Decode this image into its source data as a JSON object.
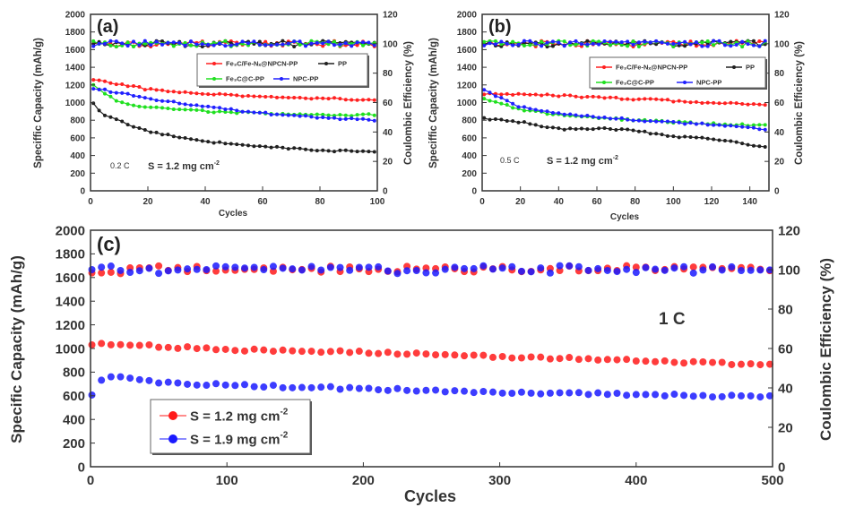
{
  "chart_data": [
    {
      "type": "line",
      "panel_label": "(a)",
      "xlabel": "Cycles",
      "ylabel": "Speciffic Capacity (mAh/g)",
      "ylabel_right": "Coulombic Efficiency (%)",
      "xlim": [
        0,
        100
      ],
      "xticks": [
        0,
        20,
        40,
        60,
        80,
        100
      ],
      "ylim": [
        0,
        2000
      ],
      "yticks": [
        0,
        200,
        400,
        600,
        800,
        1000,
        1200,
        1400,
        1600,
        1800,
        2000
      ],
      "ylim_right": [
        0,
        120
      ],
      "yticks_right": [
        0,
        20,
        40,
        60,
        80,
        100,
        120
      ],
      "annotations": [
        "0.2 C",
        "S = 1.2 mg cm",
        "-2"
      ],
      "legend": {
        "placement": "top-right"
      },
      "series": [
        {
          "name": "Fe₃C/Fe-Nₓ@NPCN-PP",
          "color": "#ff2020",
          "x": [
            0,
            20,
            40,
            60,
            80,
            100
          ],
          "capacity": [
            1270,
            1150,
            1100,
            1060,
            1050,
            1030
          ],
          "ce": 100
        },
        {
          "name": "PP",
          "color": "#202020",
          "x": [
            0,
            5,
            20,
            40,
            60,
            80,
            100
          ],
          "capacity": [
            1020,
            850,
            670,
            560,
            500,
            460,
            440
          ],
          "ce": 100
        },
        {
          "name": "Fe₃C@C-PP",
          "color": "#20e020",
          "x": [
            0,
            10,
            20,
            40,
            60,
            80,
            100
          ],
          "capacity": [
            1220,
            1000,
            950,
            900,
            880,
            860,
            860
          ],
          "ce": 100
        },
        {
          "name": "NPC-PP",
          "color": "#2020ff",
          "x": [
            0,
            20,
            40,
            60,
            80,
            100
          ],
          "capacity": [
            1170,
            1050,
            950,
            880,
            830,
            800
          ],
          "ce": 100
        }
      ]
    },
    {
      "type": "line",
      "panel_label": "(b)",
      "xlabel": "Cycles",
      "ylabel": "Speciffic Capacity (mAh/g)",
      "ylabel_right": "Coulombic Efficiency (%)",
      "xlim": [
        0,
        150
      ],
      "xticks": [
        0,
        20,
        40,
        60,
        80,
        100,
        120,
        140
      ],
      "ylim": [
        0,
        2000
      ],
      "yticks": [
        0,
        200,
        400,
        600,
        800,
        1000,
        1200,
        1400,
        1600,
        1800,
        2000
      ],
      "ylim_right": [
        0,
        120
      ],
      "yticks_right": [
        0,
        20,
        40,
        60,
        80,
        100,
        120
      ],
      "annotations": [
        "0.5 C",
        "S = 1.2 mg cm",
        "-2"
      ],
      "legend": {
        "placement": "top-right"
      },
      "series": [
        {
          "name": "Fe₃C/Fe-Nₓ@NPCN-PP",
          "color": "#ff2020",
          "x": [
            0,
            40,
            80,
            120,
            150
          ],
          "capacity": [
            1100,
            1080,
            1040,
            1000,
            970
          ],
          "ce": 100
        },
        {
          "name": "PP",
          "color": "#202020",
          "x": [
            0,
            20,
            40,
            60,
            80,
            100,
            120,
            150
          ],
          "capacity": [
            820,
            780,
            700,
            710,
            680,
            620,
            590,
            490
          ],
          "ce": 100
        },
        {
          "name": "Fe₃C@C-PP",
          "color": "#20e020",
          "x": [
            0,
            20,
            40,
            80,
            120,
            150
          ],
          "capacity": [
            1050,
            920,
            860,
            800,
            760,
            740
          ],
          "ce": 100
        },
        {
          "name": "NPC-PP",
          "color": "#2020ff",
          "x": [
            0,
            20,
            40,
            80,
            120,
            150
          ],
          "capacity": [
            1150,
            950,
            880,
            800,
            750,
            700
          ],
          "ce": 100
        }
      ]
    },
    {
      "type": "scatter",
      "panel_label": "(c)",
      "xlabel": "Cycles",
      "ylabel": "Specific Capacity (mAh/g)",
      "ylabel_right": "Coulombic Efficiency (%)",
      "xlim": [
        0,
        500
      ],
      "xticks": [
        0,
        100,
        200,
        300,
        400,
        500
      ],
      "ylim": [
        0,
        2000
      ],
      "yticks": [
        0,
        200,
        400,
        600,
        800,
        1000,
        1200,
        1400,
        1600,
        1800,
        2000
      ],
      "ylim_right": [
        0,
        120
      ],
      "yticks_right": [
        0,
        20,
        40,
        60,
        80,
        100,
        120
      ],
      "annotations": [
        "1 C"
      ],
      "legend": {
        "placement": "bottom-left"
      },
      "series": [
        {
          "name": "S = 1.2 mg cm",
          "sup": "-2",
          "color": "#ff1a1a",
          "x": [
            0,
            10,
            100,
            200,
            300,
            400,
            500
          ],
          "capacity": [
            1020,
            1040,
            990,
            970,
            930,
            900,
            860
          ],
          "ce": 100
        },
        {
          "name": "S = 1.9 mg cm",
          "sup": "-2",
          "color": "#1a1aff",
          "x": [
            0,
            10,
            50,
            100,
            200,
            300,
            400,
            500
          ],
          "capacity": [
            580,
            770,
            710,
            690,
            660,
            630,
            610,
            590
          ],
          "ce": 100
        }
      ]
    }
  ]
}
